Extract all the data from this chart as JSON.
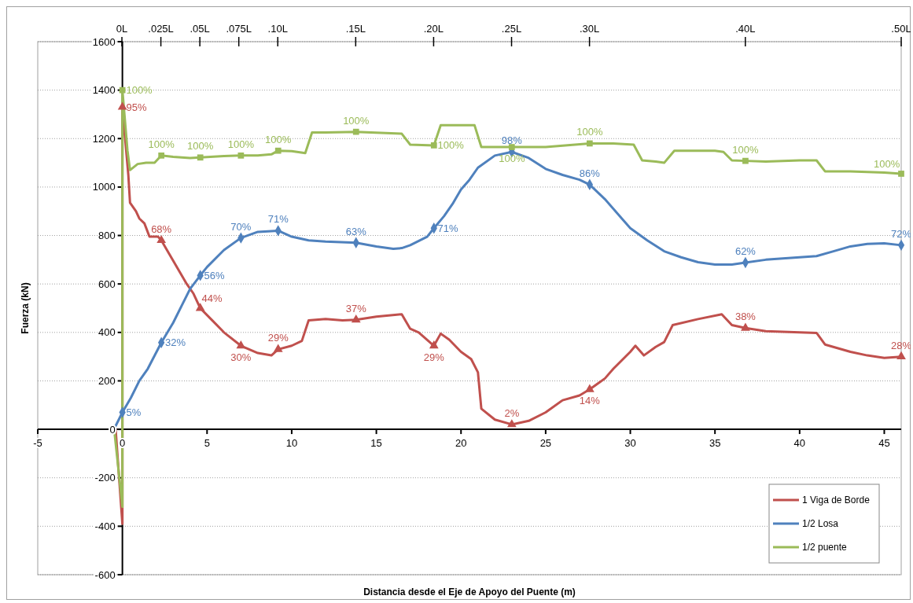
{
  "chart_data": {
    "type": "line",
    "xlabel": "Distancia desde el Eje de Apoyo del Puente (m)",
    "ylabel": "Fuerza (kN)",
    "xlim": [
      -5,
      46
    ],
    "xticks": [
      -5,
      0,
      5,
      10,
      15,
      20,
      25,
      30,
      35,
      40,
      45
    ],
    "ylim": [
      -600,
      1600
    ],
    "yticks": [
      -600,
      -400,
      -200,
      0,
      200,
      400,
      600,
      800,
      1000,
      1200,
      1400,
      1600
    ],
    "x2lim": [
      -0.054,
      0.5
    ],
    "x2ticks": [
      {
        "value": 0,
        "label": "0L"
      },
      {
        "value": 0.025,
        "label": ".025L"
      },
      {
        "value": 0.05,
        "label": ".05L"
      },
      {
        "value": 0.075,
        "label": ".075L"
      },
      {
        "value": 0.1,
        "label": ".10L"
      },
      {
        "value": 0.15,
        "label": ".15L"
      },
      {
        "value": 0.2,
        "label": ".20L"
      },
      {
        "value": 0.25,
        "label": ".25L"
      },
      {
        "value": 0.3,
        "label": ".30L"
      },
      {
        "value": 0.4,
        "label": ".40L"
      },
      {
        "value": 0.5,
        "label": ".50L"
      }
    ],
    "grid": "y",
    "legend": "bottom right",
    "series": [
      {
        "name": "1 Viga de Borde",
        "color": "#c0504d",
        "marker": "none",
        "x": [
          -0.4,
          0,
          0,
          0.35,
          0.45,
          0.8,
          1,
          1.3,
          1.6,
          2.1,
          2.3,
          2.8,
          3.3,
          3.8,
          4.2,
          4.6,
          5.3,
          6,
          7,
          8,
          8.8,
          9.2,
          10,
          10.6,
          11,
          12,
          13,
          13.8,
          15,
          16.5,
          17,
          17.5,
          18.4,
          18.8,
          19.3,
          20,
          20.6,
          21,
          21.2,
          22,
          23,
          24,
          25,
          26,
          27,
          27.6,
          28.5,
          29,
          30,
          30.3,
          30.8,
          31.5,
          32,
          32.5,
          34,
          35.4,
          36,
          36.8,
          38,
          40,
          41,
          41.5,
          43,
          44,
          45,
          46
        ],
        "values": [
          0,
          -390,
          1330,
          1050,
          935,
          900,
          870,
          850,
          795,
          795,
          780,
          720,
          660,
          600,
          560,
          500,
          450,
          400,
          345,
          315,
          305,
          330,
          345,
          365,
          450,
          455,
          450,
          452,
          465,
          475,
          415,
          400,
          345,
          395,
          370,
          320,
          290,
          235,
          85,
          40,
          20,
          35,
          70,
          120,
          140,
          165,
          210,
          250,
          320,
          345,
          305,
          340,
          360,
          430,
          455,
          475,
          430,
          418,
          405,
          400,
          398,
          350,
          320,
          305,
          295,
          300
        ]
      },
      {
        "name": "1/2 Losa",
        "color": "#4f81bd",
        "marker": "none",
        "x": [
          -0.5,
          0,
          0.5,
          1,
          1.5,
          2.3,
          3,
          3.5,
          4,
          4.6,
          5,
          6,
          7,
          8,
          9.2,
          10,
          11,
          12,
          13.8,
          15,
          16,
          16.5,
          17,
          18,
          18.4,
          19,
          19.5,
          20,
          20.5,
          21,
          22,
          23,
          24,
          25,
          26,
          27,
          27.6,
          28.5,
          29.5,
          30,
          31,
          32,
          33,
          34,
          35,
          36,
          36.8,
          38,
          40,
          41,
          42,
          43,
          44,
          45,
          46
        ],
        "values": [
          0,
          70,
          130,
          200,
          250,
          358,
          440,
          510,
          580,
          635,
          670,
          740,
          790,
          815,
          820,
          795,
          780,
          775,
          770,
          755,
          745,
          748,
          760,
          795,
          830,
          880,
          930,
          990,
          1030,
          1080,
          1130,
          1145,
          1120,
          1075,
          1050,
          1030,
          1010,
          950,
          870,
          830,
          780,
          735,
          710,
          690,
          680,
          680,
          688,
          700,
          710,
          715,
          735,
          755,
          765,
          768,
          760
        ]
      },
      {
        "name": "1/2 puente",
        "color": "#9bbb59",
        "marker": "none",
        "x": [
          -0.5,
          0,
          0,
          0.3,
          0.45,
          0.9,
          1.4,
          1.9,
          2.3,
          3,
          4,
          4.6,
          6,
          7,
          8,
          8.8,
          9.2,
          10,
          10.8,
          11.2,
          12,
          13.8,
          16.5,
          17,
          18.4,
          18.8,
          20,
          20.8,
          21.2,
          23,
          25,
          27.6,
          29,
          30.2,
          30.7,
          31.5,
          32,
          32.6,
          35,
          35.5,
          36,
          36.8,
          38,
          40,
          41,
          41.5,
          43,
          45,
          46
        ],
        "values": [
          10,
          -320,
          1400,
          1150,
          1070,
          1095,
          1100,
          1100,
          1130,
          1125,
          1120,
          1122,
          1128,
          1130,
          1130,
          1135,
          1150,
          1148,
          1140,
          1225,
          1225,
          1228,
          1220,
          1175,
          1172,
          1255,
          1255,
          1255,
          1165,
          1165,
          1165,
          1180,
          1180,
          1175,
          1110,
          1105,
          1100,
          1150,
          1150,
          1145,
          1110,
          1108,
          1105,
          1110,
          1110,
          1065,
          1065,
          1060,
          1055
        ]
      },
      {
        "type": "scatter",
        "color": "#c0504d",
        "marker": "triangle",
        "x": [
          0,
          2.3,
          4.6,
          7,
          9.2,
          13.8,
          18.4,
          23,
          27.6,
          36.8,
          46
        ],
        "values": [
          1330,
          780,
          500,
          345,
          330,
          452,
          345,
          20,
          165,
          418,
          300
        ]
      },
      {
        "type": "scatter",
        "color": "#4f81bd",
        "marker": "diamond",
        "x": [
          0,
          2.3,
          4.6,
          7,
          9.2,
          13.8,
          18.4,
          23,
          27.6,
          36.8,
          46
        ],
        "values": [
          70,
          358,
          635,
          790,
          820,
          770,
          830,
          1145,
          1010,
          688,
          760
        ]
      },
      {
        "type": "scatter",
        "color": "#9bbb59",
        "marker": "square",
        "x": [
          0,
          2.3,
          4.6,
          7,
          9.2,
          13.8,
          18.4,
          23,
          27.6,
          36.8,
          46
        ],
        "values": [
          1400,
          1130,
          1122,
          1130,
          1150,
          1228,
          1172,
          1165,
          1180,
          1108,
          1055
        ]
      }
    ],
    "annotations": [
      {
        "text": "95%",
        "x": 0,
        "y": 1330
      },
      {
        "text": "68%",
        "x": 2.3,
        "y": 780
      },
      {
        "text": "44%",
        "x": 4.6,
        "y": 500
      },
      {
        "text": "30%",
        "x": 7,
        "y": 345
      },
      {
        "text": "29%",
        "x": 9.2,
        "y": 330
      },
      {
        "text": "37%",
        "x": 13.8,
        "y": 452
      },
      {
        "text": "29%",
        "x": 18.4,
        "y": 345
      },
      {
        "text": "2%",
        "x": 23,
        "y": 20
      },
      {
        "text": "14%",
        "x": 27.6,
        "y": 165
      },
      {
        "text": "38%",
        "x": 36.8,
        "y": 418
      },
      {
        "text": "28%",
        "x": 46,
        "y": 300
      },
      {
        "text": "5%",
        "x": 0,
        "y": 70
      },
      {
        "text": "32%",
        "x": 2.3,
        "y": 358
      },
      {
        "text": "56%",
        "x": 4.6,
        "y": 635
      },
      {
        "text": "70%",
        "x": 7,
        "y": 790
      },
      {
        "text": "71%",
        "x": 9.2,
        "y": 820
      },
      {
        "text": "63%",
        "x": 13.8,
        "y": 770
      },
      {
        "text": "71%",
        "x": 18.4,
        "y": 830
      },
      {
        "text": "98%",
        "x": 23,
        "y": 1145
      },
      {
        "text": "86%",
        "x": 27.6,
        "y": 1010
      },
      {
        "text": "62%",
        "x": 36.8,
        "y": 688
      },
      {
        "text": "72%",
        "x": 46,
        "y": 760
      },
      {
        "text": "100%",
        "x": 0,
        "y": 1400
      },
      {
        "text": "100%",
        "x": 2.3,
        "y": 1130
      },
      {
        "text": "100%",
        "x": 4.6,
        "y": 1122
      },
      {
        "text": "100%",
        "x": 7,
        "y": 1130
      },
      {
        "text": "100%",
        "x": 9.2,
        "y": 1150
      },
      {
        "text": "100%",
        "x": 13.8,
        "y": 1228
      },
      {
        "text": "100%",
        "x": 18.4,
        "y": 1172
      },
      {
        "text": "100%",
        "x": 23,
        "y": 1165
      },
      {
        "text": "100%",
        "x": 27.6,
        "y": 1180
      },
      {
        "text": "100%",
        "x": 36.8,
        "y": 1108
      },
      {
        "text": "100%",
        "x": 46,
        "y": 1055
      }
    ]
  }
}
